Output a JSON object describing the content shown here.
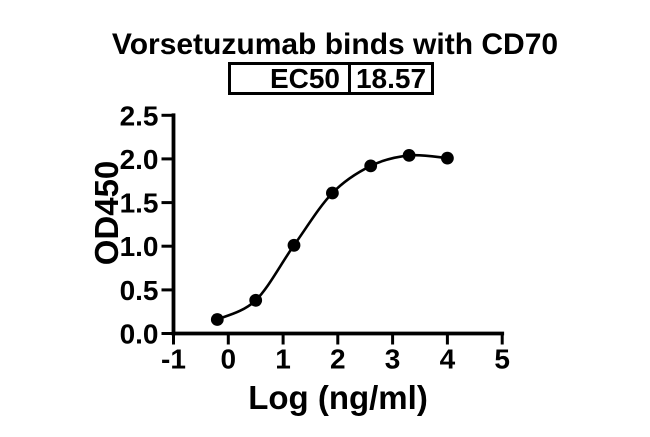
{
  "title": "Vorsetuzumab binds with CD70",
  "ec50_table": {
    "label": "EC50",
    "value": "18.57"
  },
  "chart_data": {
    "type": "scatter",
    "title": "Vorsetuzumab binds with CD70",
    "xlabel": "Log (ng/ml)",
    "ylabel": "OD450",
    "xlim": [
      -1,
      5
    ],
    "ylim": [
      0,
      2.5
    ],
    "x_tick_values": [
      -1,
      0,
      1,
      2,
      3,
      4,
      5
    ],
    "x_tick_labels": [
      "-1",
      "0",
      "1",
      "2",
      "3",
      "4",
      "5"
    ],
    "y_tick_values": [
      0,
      0.5,
      1,
      1.5,
      2,
      2.5
    ],
    "y_tick_labels": [
      "0.0",
      "0.5",
      "1.0",
      "1.5",
      "2.0",
      "2.5"
    ],
    "x": [
      -0.2,
      0.5,
      1.2,
      1.9,
      2.6,
      3.3,
      4.0
    ],
    "y": [
      0.16,
      0.38,
      1.01,
      1.61,
      1.92,
      2.04,
      2.01
    ],
    "ec50": 18.57,
    "marker_color": "#000000",
    "line_color": "#000000",
    "axis_color": "#000000",
    "background_color": "#ffffff",
    "legend": "none",
    "grid": "off"
  }
}
